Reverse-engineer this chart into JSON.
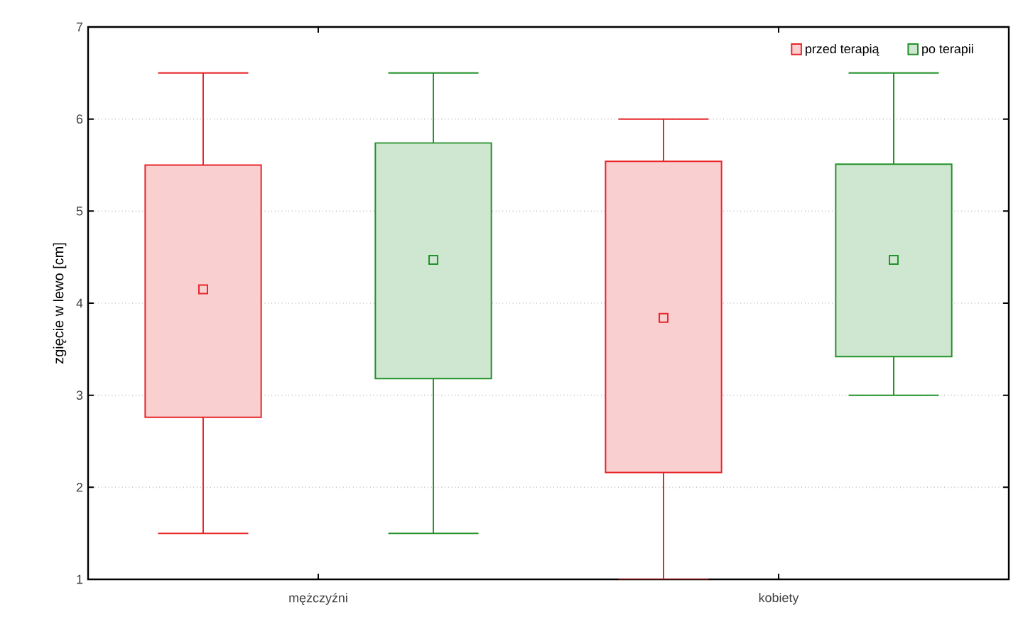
{
  "chart_data": {
    "type": "box",
    "ylabel": "zgięcie w lewo [cm]",
    "categories": [
      "mężczyźni",
      "kobiety"
    ],
    "series": [
      {
        "name": "przed terapią",
        "color": "#e8262b",
        "boxes": [
          {
            "low": 1.5,
            "q1": 2.76,
            "median": 4.15,
            "q3": 5.5,
            "high": 6.5
          },
          {
            "low": 1.0,
            "q1": 2.16,
            "median": 3.84,
            "q3": 5.54,
            "high": 6.0
          }
        ]
      },
      {
        "name": "po terapii",
        "color": "#23922a",
        "boxes": [
          {
            "low": 1.5,
            "q1": 3.18,
            "median": 4.47,
            "q3": 5.74,
            "high": 6.5
          },
          {
            "low": 3.0,
            "q1": 3.42,
            "median": 4.47,
            "q3": 5.51,
            "high": 6.5
          }
        ]
      }
    ],
    "ylim": [
      1,
      7
    ],
    "yticks": [
      1,
      2,
      3,
      4,
      5,
      6,
      7
    ],
    "grid": "y",
    "legend": "top right",
    "marker": "square"
  }
}
